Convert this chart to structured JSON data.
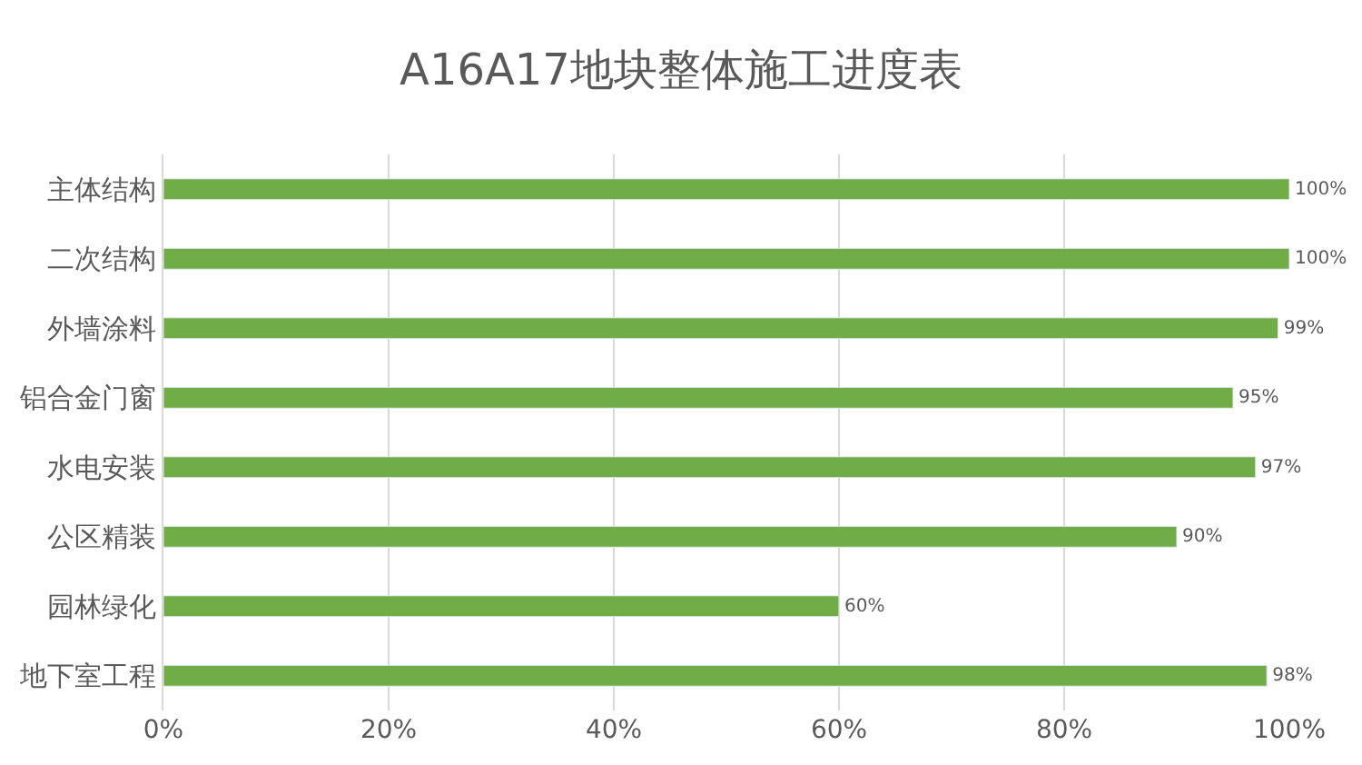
{
  "chart_data": {
    "type": "bar",
    "orientation": "horizontal",
    "title": "A16A17地块整体施工进度表",
    "categories": [
      "主体结构",
      "二次结构",
      "外墙涂料",
      "铝合金门窗",
      "水电安装",
      "公区精装",
      "园林绿化",
      "地下室工程"
    ],
    "values": [
      100,
      100,
      99,
      95,
      97,
      90,
      60,
      98
    ],
    "value_labels": [
      "100%",
      "100%",
      "99%",
      "95%",
      "97%",
      "90%",
      "60%",
      "98%"
    ],
    "color": "#70ad47",
    "xlim": [
      0,
      100
    ],
    "xticks": [
      {
        "value": 0,
        "label": "0%"
      },
      {
        "value": 20,
        "label": "20%"
      },
      {
        "value": 40,
        "label": "40%"
      },
      {
        "value": 60,
        "label": "60%"
      },
      {
        "value": 80,
        "label": "80%"
      },
      {
        "value": 100,
        "label": "100%"
      }
    ],
    "grid": "x",
    "legend": false
  }
}
